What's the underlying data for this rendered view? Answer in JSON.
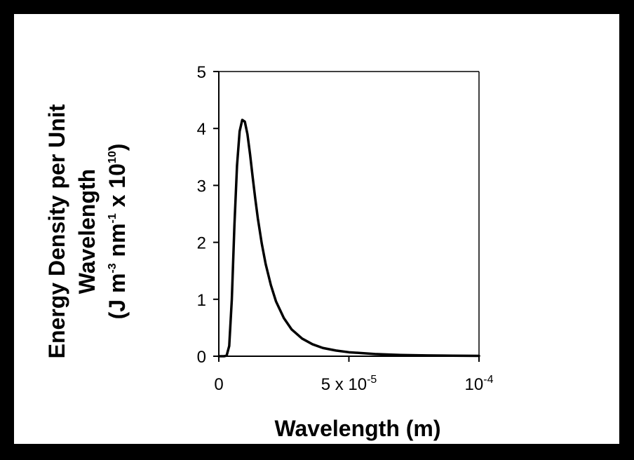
{
  "chart_data": {
    "type": "line",
    "xlabel": "Wavelength (m)",
    "ylabel_lines": [
      "Energy Density per Unit",
      "Wavelength"
    ],
    "ylabel_units": {
      "open": "(J m",
      "sup1": "-3",
      "mid": " nm",
      "sup2": "-1",
      "times": " x 10",
      "sup3": "10",
      "close": ")"
    },
    "xlim": [
      0,
      0.0001
    ],
    "ylim": [
      0,
      5
    ],
    "y_ticks": [
      {
        "value": 0,
        "label": "0"
      },
      {
        "value": 1,
        "label": "1"
      },
      {
        "value": 2,
        "label": "2"
      },
      {
        "value": 3,
        "label": "3"
      },
      {
        "value": 4,
        "label": "4"
      },
      {
        "value": 5,
        "label": "5"
      }
    ],
    "x_ticks": [
      {
        "value": 0,
        "base": "0",
        "exp": ""
      },
      {
        "value": 5e-05,
        "base": "5 x 10",
        "exp": "-5"
      },
      {
        "value": 0.0001,
        "base": "10",
        "exp": "-4"
      }
    ],
    "series": [
      {
        "color": "#000000",
        "points": [
          [
            2e-06,
            0.0
          ],
          [
            3e-06,
            0.01
          ],
          [
            4e-06,
            0.18
          ],
          [
            5e-06,
            1.0
          ],
          [
            6e-06,
            2.3
          ],
          [
            7e-06,
            3.35
          ],
          [
            8e-06,
            3.95
          ],
          [
            9e-06,
            4.15
          ],
          [
            1e-05,
            4.12
          ],
          [
            1.1e-05,
            3.9
          ],
          [
            1.2e-05,
            3.55
          ],
          [
            1.3e-05,
            3.15
          ],
          [
            1.4e-05,
            2.77
          ],
          [
            1.5e-05,
            2.42
          ],
          [
            1.65e-05,
            1.98
          ],
          [
            1.8e-05,
            1.62
          ],
          [
            2e-05,
            1.25
          ],
          [
            2.2e-05,
            0.96
          ],
          [
            2.5e-05,
            0.67
          ],
          [
            2.8e-05,
            0.47
          ],
          [
            3.2e-05,
            0.31
          ],
          [
            3.6e-05,
            0.21
          ],
          [
            4e-05,
            0.145
          ],
          [
            4.5e-05,
            0.1
          ],
          [
            5e-05,
            0.07
          ],
          [
            6e-05,
            0.038
          ],
          [
            7e-05,
            0.022
          ],
          [
            8e-05,
            0.014
          ],
          [
            9e-05,
            0.009
          ],
          [
            0.0001,
            0.006
          ]
        ]
      }
    ]
  }
}
